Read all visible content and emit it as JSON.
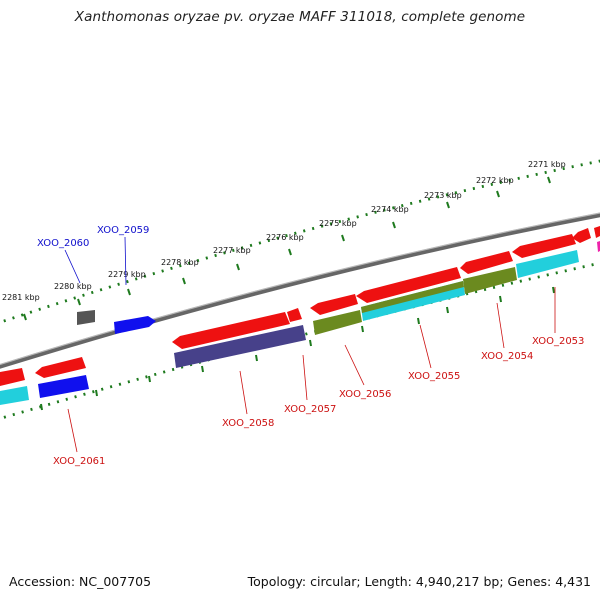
{
  "title": "Xanthomonas oryzae pv. oryzae MAFF 311018, complete genome",
  "footer": {
    "accession": "Accession: NC_007705",
    "summary": "Topology: circular; Length: 4,940,217 bp; Genes: 4,431"
  },
  "colors": {
    "backbone": "#777777",
    "tick": "#1e7a1e",
    "gene_forward": "#ee1111",
    "gene_reverse": "#1010ee",
    "gene_gray": "#555555",
    "cds_cyan": "#22cfdc",
    "cds_olive": "#6b8a1f",
    "cds_navy": "#47418a",
    "label_blue": "#1010cc",
    "label_red": "#cc1111"
  },
  "scale_labels": [
    "2271 kbp",
    "2272 kbp",
    "2273 kbp",
    "2274 kbp",
    "2275 kbp",
    "2276 kbp",
    "2277 kbp",
    "2278 kbp",
    "2279 kbp",
    "2280 kbp",
    "2281 kbp"
  ],
  "gene_labels": [
    {
      "name": "XOO_2053",
      "strand": "minus"
    },
    {
      "name": "XOO_2054",
      "strand": "minus"
    },
    {
      "name": "XOO_2055",
      "strand": "minus"
    },
    {
      "name": "XOO_2056",
      "strand": "minus"
    },
    {
      "name": "XOO_2057",
      "strand": "minus"
    },
    {
      "name": "XOO_2058",
      "strand": "minus"
    },
    {
      "name": "XOO_2059",
      "strand": "plus"
    },
    {
      "name": "XOO_2060",
      "strand": "plus"
    },
    {
      "name": "XOO_2061",
      "strand": "minus"
    }
  ]
}
